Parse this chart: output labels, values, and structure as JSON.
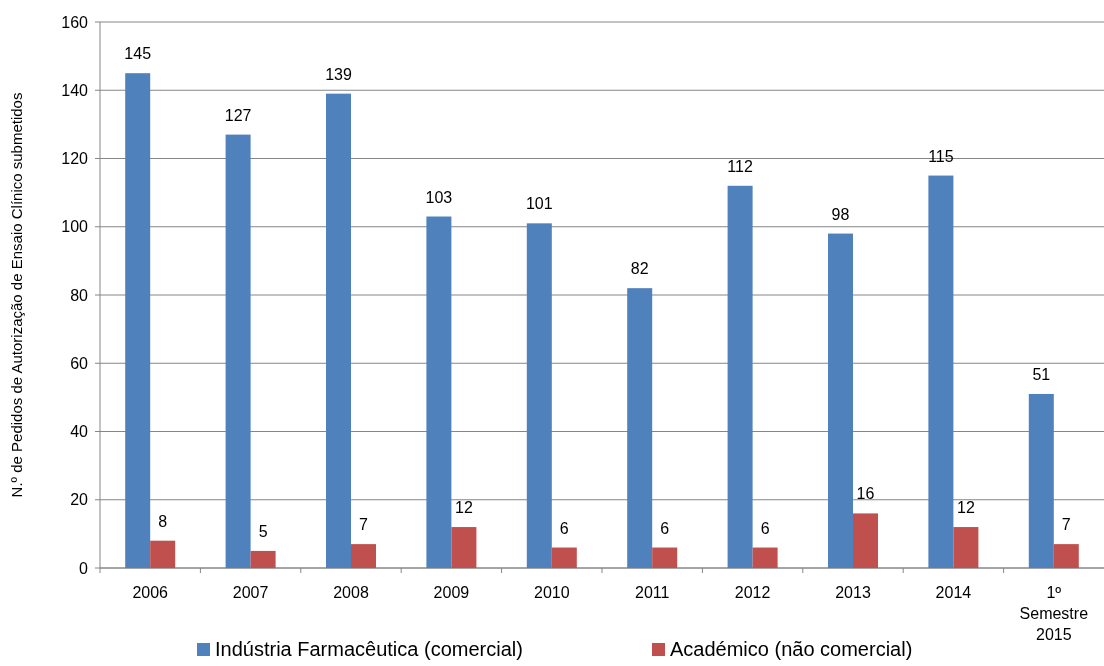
{
  "chart_data": {
    "type": "bar",
    "ylabel": "N.º de Pedidos de Autorização de Ensaio Clínico submetidos",
    "categories": [
      "2006",
      "2007",
      "2008",
      "2009",
      "2010",
      "2011",
      "2012",
      "2013",
      "2014",
      "1º Semestre 2015"
    ],
    "series": [
      {
        "name": "Indústria Farmacêutica (comercial)",
        "color": "#4f81bd",
        "values": [
          145,
          127,
          139,
          103,
          101,
          82,
          112,
          98,
          115,
          51
        ]
      },
      {
        "name": "Académico (não comercial)",
        "color": "#c0504d",
        "values": [
          8,
          5,
          7,
          12,
          6,
          6,
          6,
          16,
          12,
          7
        ]
      }
    ],
    "ylim": [
      0,
      160
    ],
    "yticks": [
      0,
      20,
      40,
      60,
      80,
      100,
      120,
      140,
      160
    ],
    "grid": "y",
    "legend": "bottom",
    "data_labels": true
  }
}
